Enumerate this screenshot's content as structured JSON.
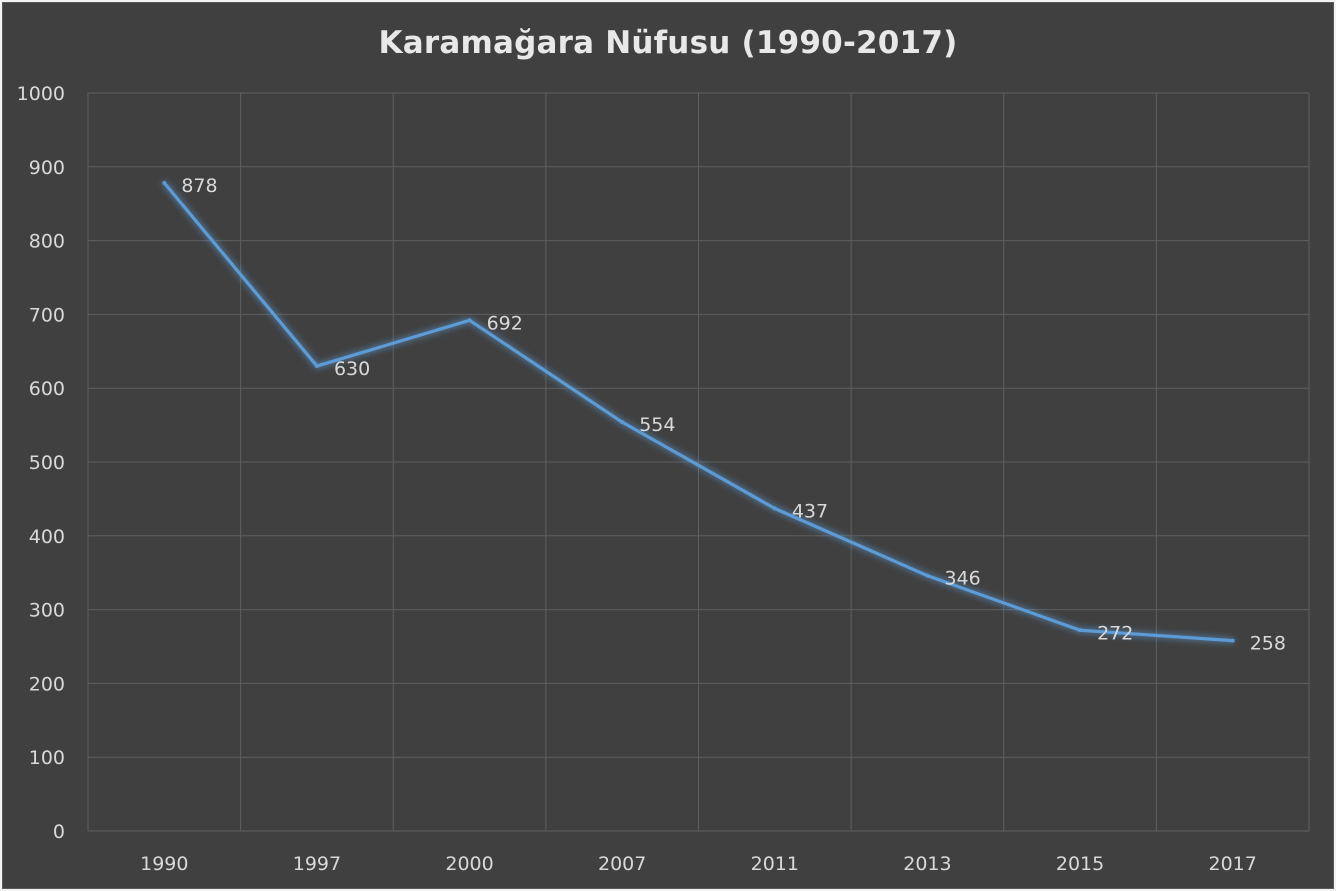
{
  "chart_data": {
    "type": "line",
    "title": "Karamağara Nüfusu (1990-2017)",
    "xlabel": "",
    "ylabel": "",
    "categories": [
      "1990",
      "1997",
      "2000",
      "2007",
      "2011",
      "2013",
      "2015",
      "2017"
    ],
    "series": [
      {
        "values": [
          878,
          630,
          692,
          554,
          437,
          346,
          272,
          258
        ]
      }
    ],
    "ylim": [
      0,
      1000
    ],
    "yticks": [
      "0",
      "100",
      "200",
      "300",
      "400",
      "500",
      "600",
      "700",
      "800",
      "900",
      "1000"
    ],
    "grid": true,
    "legend": "none",
    "data_labels": true
  },
  "colors": {
    "background": "#404040",
    "line": "#5b9bd5",
    "grid": "#5f5f5f",
    "text": "#d9d9d9"
  }
}
